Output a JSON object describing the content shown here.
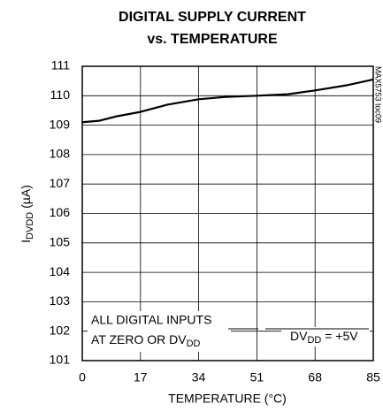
{
  "chart_data": {
    "type": "line",
    "title": "DIGITAL SUPPLY CURRENT",
    "subtitle": "vs. TEMPERATURE",
    "x_label": "TEMPERATURE (°C)",
    "y_label": {
      "main": "I",
      "sub": "DVDD",
      "unit": " (µA)"
    },
    "side_note": "MAX5753 toc09",
    "annotations": [
      {
        "lines": [
          {
            "text": "ALL DIGITAL INPUTS"
          },
          {
            "text": "AT ZERO OR DV",
            "sub": "DD"
          }
        ]
      },
      {
        "lines": [
          {
            "text": "DV",
            "sub": "DD",
            "rest": " = +5V"
          }
        ]
      }
    ],
    "x": [
      0,
      5,
      10,
      17,
      25,
      34,
      42,
      51,
      60,
      68,
      77,
      85
    ],
    "series": [
      {
        "color": "#000000",
        "values": [
          109.1,
          109.15,
          109.3,
          109.45,
          109.7,
          109.88,
          109.96,
          110.0,
          110.05,
          110.18,
          110.35,
          110.55
        ]
      }
    ],
    "xlim": [
      0,
      85
    ],
    "xticks": [
      0,
      17,
      34,
      51,
      68,
      85
    ],
    "ylim": [
      101,
      111
    ],
    "yticks": [
      101,
      102,
      103,
      104,
      105,
      106,
      107,
      108,
      109,
      110,
      111
    ],
    "grid": true
  }
}
